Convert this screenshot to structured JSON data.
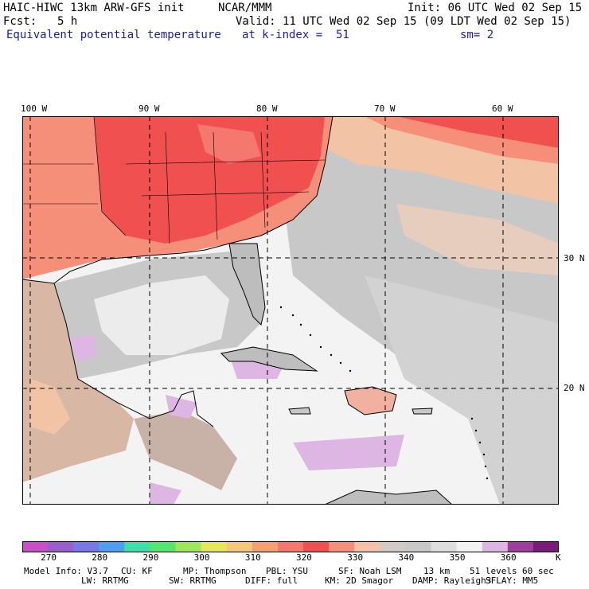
{
  "header": {
    "model_title": "HAIC-HIWC 13km ARW-GFS init",
    "institution": "NCAR/MMM",
    "init": "Init: 06 UTC Wed 02 Sep 15",
    "fcst_label": "Fcst:",
    "fcst_value": "5 h",
    "valid": "Valid: 11 UTC Wed 02 Sep 15 (09 LDT Wed 02 Sep 15)",
    "field_name": "Equivalent potential temperature",
    "level": "at k-index =  51",
    "smoothing": "sm= 2"
  },
  "map": {
    "lon_labels": [
      "100 W",
      "90 W",
      "80 W",
      "70 W",
      "60 W"
    ],
    "lat_labels": [
      "30 N",
      "20 N"
    ]
  },
  "colorbar": {
    "ticks": [
      "270",
      "280",
      "290",
      "300",
      "310",
      "320",
      "330",
      "340",
      "350",
      "360"
    ],
    "unit": "K",
    "colors": [
      "#c84fc8",
      "#9a5fcf",
      "#7878e6",
      "#4f9ff0",
      "#3ee0a8",
      "#54e66e",
      "#9ee65a",
      "#e6e65a",
      "#f5c878",
      "#f5a06e",
      "#f5786e",
      "#f0504f",
      "#f58f7a",
      "#f5c2a8",
      "#d2cac5",
      "#c8c8c8",
      "#dedede",
      "#f3f3f3",
      "#ddb6e3",
      "#a03c9e",
      "#7a1a7a"
    ]
  },
  "footer": {
    "line1": [
      "Model Info: V3.7",
      "CU: KF",
      "MP: Thompson",
      "PBL: YSU",
      "SF: Noah LSM",
      "13 km",
      "51 levels",
      "60 sec"
    ],
    "line2": [
      "LW: RRTMG",
      "SW: RRTMG",
      "DIFF: full",
      "KM: 2D Smagor",
      "DAMP: Rayleigh3",
      "SFLAY: MM5"
    ]
  }
}
